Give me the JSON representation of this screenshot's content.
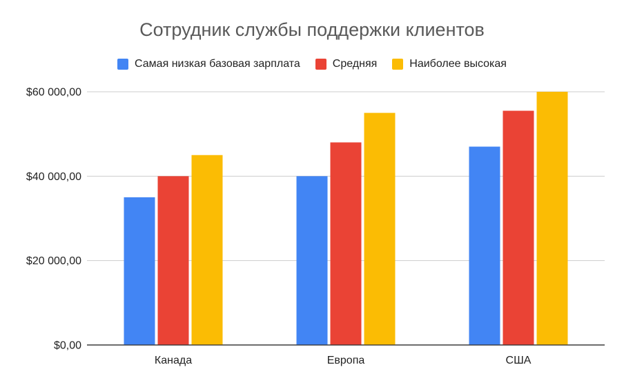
{
  "chart_data": {
    "type": "bar",
    "title": "Сотрудник службы поддержки клиентов",
    "categories": [
      "Канада",
      "Европа",
      "США"
    ],
    "series": [
      {
        "name": "Самая низкая базовая зарплата",
        "color": "#4285f4",
        "values": [
          35000,
          40000,
          47000
        ]
      },
      {
        "name": "Средняя",
        "color": "#ea4335",
        "values": [
          40000,
          48000,
          55500
        ]
      },
      {
        "name": "Наиболее высокая",
        "color": "#fbbc04",
        "values": [
          45000,
          55000,
          60000
        ]
      }
    ],
    "y_ticks": [
      0,
      20000,
      40000,
      60000
    ],
    "y_tick_labels": [
      "$0,00",
      "$20 000,00",
      "$40 000,00",
      "$60 000,00"
    ],
    "ylim": [
      0,
      60000
    ],
    "xlabel": "",
    "ylabel": "",
    "grid": true,
    "legend_position": "top"
  }
}
